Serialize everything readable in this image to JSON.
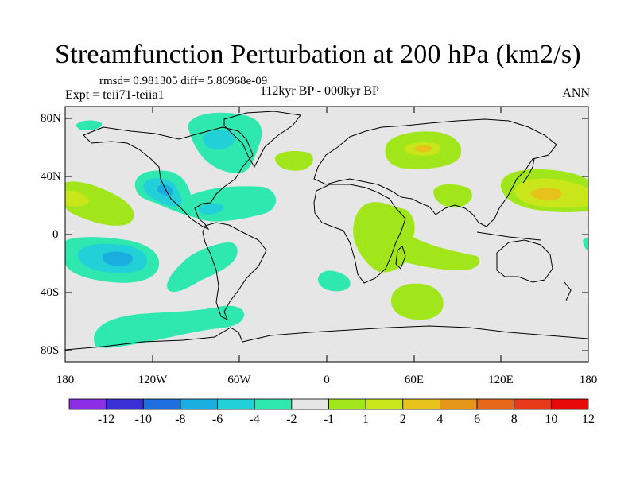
{
  "title": "Streamfunction Perturbation at 200 hPa (km2/s)",
  "stats_text": "rmsd= 0.981305 diff= 5.86968e-09",
  "experiment_text": "Expt = teii71-teiia1",
  "period_text": "112kyr BP - 000kyr BP",
  "season_text": "ANN",
  "lat_ticks": [
    "80N",
    "40N",
    "0",
    "40S",
    "80S"
  ],
  "lon_ticks": [
    "180",
    "120W",
    "60W",
    "0",
    "60E",
    "120E",
    "180"
  ],
  "colorbar": {
    "labels": [
      "-12",
      "-10",
      "-8",
      "-6",
      "-4",
      "-2",
      "-1",
      "1",
      "2",
      "4",
      "6",
      "8",
      "10",
      "12"
    ],
    "colors": [
      "#8c2ee6",
      "#3a2fd6",
      "#1f6fe0",
      "#1aaee0",
      "#22d0d8",
      "#2ee8b0",
      "#e6e6e6",
      "#a0e61a",
      "#c8e61a",
      "#e6c21a",
      "#e6961a",
      "#e6661a",
      "#e63a1a",
      "#e60a0a"
    ]
  },
  "colors": {
    "background": "#e6e6e6",
    "neg_1_2": "#2ee8b0",
    "neg_2_4": "#22d0d8",
    "neg_4_6": "#1aaee0",
    "pos_1_2": "#a0e61a",
    "pos_2_4": "#c8e61a",
    "pos_4_6": "#e6c21a"
  }
}
